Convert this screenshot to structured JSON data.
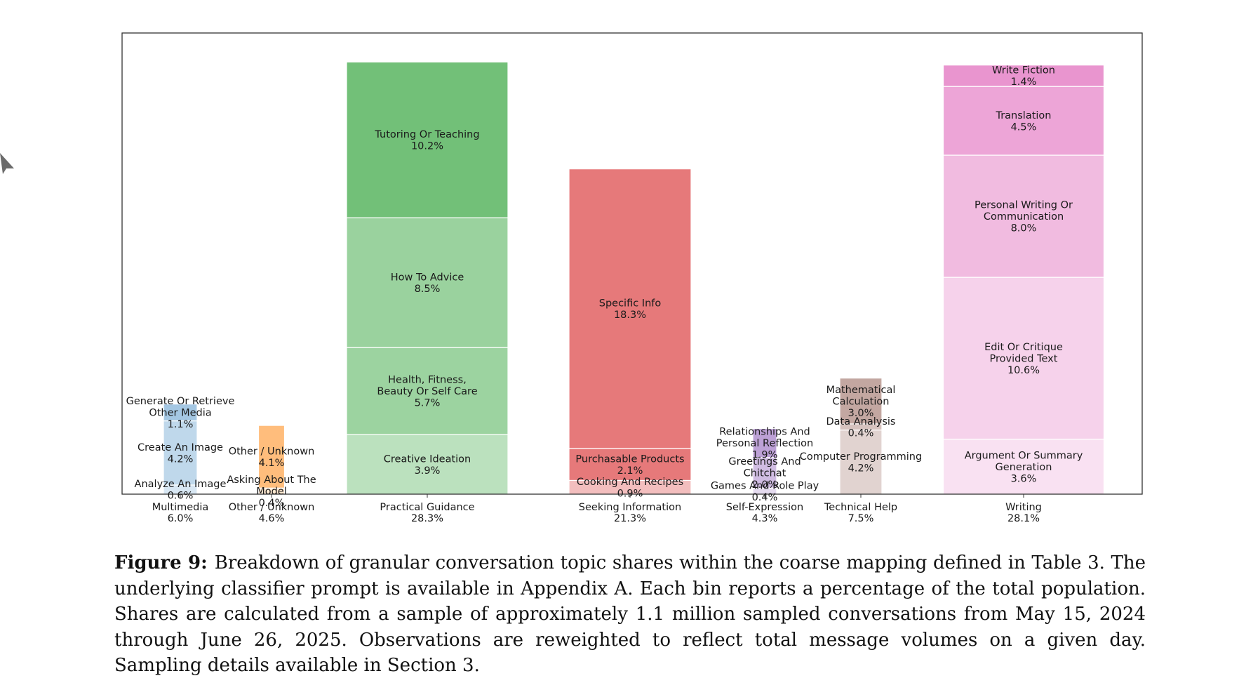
{
  "chart_data": {
    "type": "stacked-bar",
    "title": "",
    "ylim": [
      0,
      30.2
    ],
    "categories": [
      {
        "label": "Multimedia",
        "total": "6.0%",
        "color": "#3d88c3",
        "segments": [
          {
            "lines": [
              "Analyze An Image",
              "0.6%"
            ],
            "value": 0.6,
            "alpha": 0.2
          },
          {
            "lines": [
              "Create An Image",
              "4.2%"
            ],
            "value": 4.2,
            "alpha": 0.33
          },
          {
            "lines": [
              "Generate Or Retrieve",
              "Other Media",
              "1.1%"
            ],
            "value": 1.1,
            "alpha": 0.47
          }
        ]
      },
      {
        "label": "Other / Unknown",
        "total": "4.6%",
        "color": "#ff8a16",
        "segments": [
          {
            "lines": [
              "Asking About The",
              "Model",
              "0.4%"
            ],
            "value": 0.4,
            "alpha": 0.2
          },
          {
            "lines": [
              "Other / Unknown",
              "4.1%"
            ],
            "value": 4.1,
            "alpha": 0.56
          }
        ]
      },
      {
        "label": "Practical Guidance",
        "total": "28.3%",
        "color": "#2ca135",
        "segments": [
          {
            "lines": [
              "Creative Ideation",
              "3.9%"
            ],
            "value": 3.9,
            "alpha": 0.32
          },
          {
            "lines": [
              "Health, Fitness,",
              "Beauty Or Self Care",
              "5.7%"
            ],
            "value": 5.7,
            "alpha": 0.47
          },
          {
            "lines": [
              "How To Advice",
              "8.5%"
            ],
            "value": 8.5,
            "alpha": 0.48
          },
          {
            "lines": [
              "Tutoring Or Teaching",
              "10.2%"
            ],
            "value": 10.2,
            "alpha": 0.67
          }
        ]
      },
      {
        "label": "Seeking Information",
        "total": "21.3%",
        "color": "#d62728",
        "segments": [
          {
            "lines": [
              "Cooking And Recipes",
              "0.9%"
            ],
            "value": 0.9,
            "alpha": 0.3
          },
          {
            "lines": [
              "Purchasable Products",
              "2.1%"
            ],
            "value": 2.1,
            "alpha": 0.62
          },
          {
            "lines": [
              "Specific Info",
              "18.3%"
            ],
            "value": 18.3,
            "alpha": 0.62
          }
        ]
      },
      {
        "label": "Self-Expression",
        "total": "4.3%",
        "color": "#9467bd",
        "segments": [
          {
            "lines": [
              "Games And Role Play",
              "0.4%"
            ],
            "value": 0.4,
            "alpha": 0.24
          },
          {
            "lines": [
              "Greetings And",
              "Chitchat",
              "2.0%"
            ],
            "value": 2.0,
            "alpha": 0.44
          },
          {
            "lines": [
              "Relationships And",
              "Personal Reflection",
              "1.9%"
            ],
            "value": 1.9,
            "alpha": 0.62
          }
        ]
      },
      {
        "label": "Technical Help",
        "total": "7.5%",
        "color": "#8c564b",
        "segments": [
          {
            "lines": [
              "Computer Programming",
              "4.2%"
            ],
            "value": 4.2,
            "alpha": 0.26
          },
          {
            "lines": [
              "Data Analysis",
              "0.4%"
            ],
            "value": 0.4,
            "alpha": 0.36
          },
          {
            "lines": [
              "Mathematical",
              "Calculation",
              "3.0%"
            ],
            "value": 3.0,
            "alpha": 0.52
          }
        ]
      },
      {
        "label": "Writing",
        "total": "28.1%",
        "color": "#e377c2",
        "segments": [
          {
            "lines": [
              "Argument Or Summary",
              "Generation",
              "3.6%"
            ],
            "value": 3.6,
            "alpha": 0.22
          },
          {
            "lines": [
              "Edit Or Critique",
              "Provided Text",
              "10.6%"
            ],
            "value": 10.6,
            "alpha": 0.33
          },
          {
            "lines": [
              "Personal Writing Or",
              "Communication",
              "8.0%"
            ],
            "value": 8.0,
            "alpha": 0.5
          },
          {
            "lines": [
              "Translation",
              "4.5%"
            ],
            "value": 4.5,
            "alpha": 0.66
          },
          {
            "lines": [
              "Write Fiction",
              "1.4%"
            ],
            "value": 1.4,
            "alpha": 0.78
          }
        ]
      }
    ]
  },
  "caption": {
    "label": "Figure 9:",
    "text": "Breakdown of granular conversation topic shares within the coarse mapping defined in Table 3. The underlying classifier prompt is available in Appendix A. Each bin reports a percentage of the total population. Shares are calculated from a sample of approximately 1.1 million sampled conversations from May 15, 2024 through June 26, 2025. Observations are reweighted to reflect total message volumes on a given day. Sampling details available in Section 3."
  },
  "icons": {
    "cursor": "cursor-arrow-icon"
  }
}
